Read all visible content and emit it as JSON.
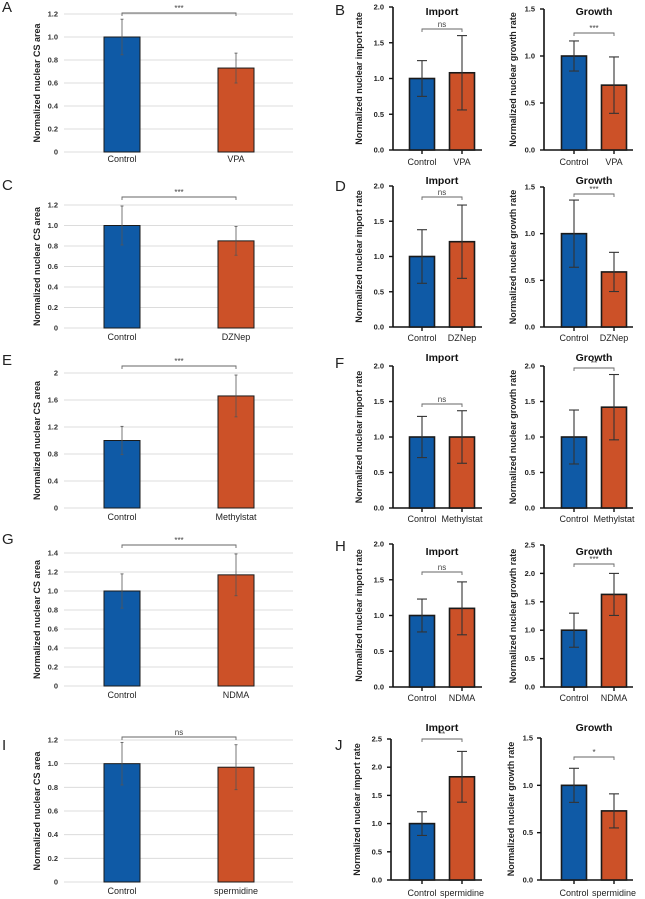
{
  "colors": {
    "control": "#0f5aa6",
    "treatment": "#cc5128",
    "grid": "#dcdcdc",
    "axis": "#111111"
  },
  "chart_data": [
    {
      "panel": "A",
      "type": "bar",
      "style": "excel",
      "title": "",
      "xlabel": "",
      "ylabel": "Normalized nuclear CS area",
      "categories": [
        "Control",
        "VPA"
      ],
      "values": [
        1.0,
        0.73
      ],
      "errors": [
        0.155,
        0.13
      ],
      "yticks": [
        "0",
        "0.2",
        "0.4",
        "0.6",
        "0.8",
        "1.0",
        "1.2"
      ],
      "ylim": [
        0,
        1.2
      ],
      "grid": true,
      "significance": "***"
    },
    {
      "panel": "B",
      "type": "bar",
      "style": "prism",
      "title": "Import",
      "xlabel": "",
      "ylabel": "Normalized nuclear import rate",
      "categories": [
        "Control",
        "VPA"
      ],
      "values": [
        1.0,
        1.08
      ],
      "errors": [
        0.25,
        0.52
      ],
      "yticks": [
        "0.0",
        "0.5",
        "1.0",
        "1.5",
        "2.0"
      ],
      "ylim": [
        0,
        2.0
      ],
      "grid": false,
      "significance": "ns"
    },
    {
      "panel": "B",
      "type": "bar",
      "style": "prism",
      "title": "Growth",
      "xlabel": "",
      "ylabel": "Normalized nuclear growth rate",
      "categories": [
        "Control",
        "VPA"
      ],
      "values": [
        1.0,
        0.69
      ],
      "errors": [
        0.16,
        0.3
      ],
      "yticks": [
        "0.0",
        "0.5",
        "1.0",
        "1.5"
      ],
      "ylim": [
        0,
        1.5
      ],
      "grid": false,
      "significance": "***"
    },
    {
      "panel": "C",
      "type": "bar",
      "style": "excel",
      "title": "",
      "xlabel": "",
      "ylabel": "Normalized nuclear CS area",
      "categories": [
        "Control",
        "DZNep"
      ],
      "values": [
        1.0,
        0.85
      ],
      "errors": [
        0.19,
        0.14
      ],
      "yticks": [
        "0",
        "0.2",
        "0.4",
        "0.6",
        "0.8",
        "1.0",
        "1.2"
      ],
      "ylim": [
        0,
        1.2
      ],
      "grid": true,
      "significance": "***"
    },
    {
      "panel": "D",
      "type": "bar",
      "style": "prism",
      "title": "Import",
      "xlabel": "",
      "ylabel": "Normalized nuclear import rate",
      "categories": [
        "Control",
        "DZNep"
      ],
      "values": [
        1.0,
        1.21
      ],
      "errors": [
        0.38,
        0.52
      ],
      "yticks": [
        "0.0",
        "0.5",
        "1.0",
        "1.5",
        "2.0"
      ],
      "ylim": [
        0,
        2.0
      ],
      "grid": false,
      "significance": "ns"
    },
    {
      "panel": "D",
      "type": "bar",
      "style": "prism",
      "title": "Growth",
      "xlabel": "",
      "ylabel": "Normalized nuclear growth rate",
      "categories": [
        "Control",
        "DZNep"
      ],
      "values": [
        1.0,
        0.59
      ],
      "errors": [
        0.36,
        0.21
      ],
      "yticks": [
        "0.0",
        "0.5",
        "1.0",
        "1.5"
      ],
      "ylim": [
        0,
        1.5
      ],
      "grid": false,
      "significance": "***"
    },
    {
      "panel": "E",
      "type": "bar",
      "style": "excel",
      "title": "",
      "xlabel": "",
      "ylabel": "Normalized nuclear CS area",
      "categories": [
        "Control",
        "Methylstat"
      ],
      "values": [
        1.0,
        1.66
      ],
      "errors": [
        0.21,
        0.31
      ],
      "yticks": [
        "0",
        "0.4",
        "0.8",
        "1.2",
        "1.6",
        "2"
      ],
      "ylim": [
        0,
        2.0
      ],
      "grid": true,
      "significance": "***"
    },
    {
      "panel": "F",
      "type": "bar",
      "style": "prism",
      "title": "Import",
      "xlabel": "",
      "ylabel": "Normalized nuclear import rate",
      "categories": [
        "Control",
        "Methylstat"
      ],
      "values": [
        1.0,
        1.0
      ],
      "errors": [
        0.29,
        0.37
      ],
      "yticks": [
        "0.0",
        "0.5",
        "1.0",
        "1.5",
        "2.0"
      ],
      "ylim": [
        0,
        2.0
      ],
      "grid": false,
      "significance": "ns"
    },
    {
      "panel": "F",
      "type": "bar",
      "style": "prism",
      "title": "Growth",
      "xlabel": "",
      "ylabel": "Normalized nuclear growth rate",
      "categories": [
        "Control",
        "Methylstat"
      ],
      "values": [
        1.0,
        1.42
      ],
      "errors": [
        0.38,
        0.46
      ],
      "yticks": [
        "0.0",
        "0.5",
        "1.0",
        "1.5",
        "2.0"
      ],
      "ylim": [
        0,
        2.0
      ],
      "grid": false,
      "significance": "**"
    },
    {
      "panel": "G",
      "type": "bar",
      "style": "excel",
      "title": "",
      "xlabel": "",
      "ylabel": "Normalized nuclear CS area",
      "categories": [
        "Control",
        "NDMA"
      ],
      "values": [
        1.0,
        1.17
      ],
      "errors": [
        0.18,
        0.22
      ],
      "yticks": [
        "0",
        "0.2",
        "0.4",
        "0.6",
        "0.8",
        "1.0",
        "1.2",
        "1.4"
      ],
      "ylim": [
        0,
        1.4
      ],
      "grid": true,
      "significance": "***"
    },
    {
      "panel": "H",
      "type": "bar",
      "style": "prism",
      "title": "Import",
      "xlabel": "",
      "ylabel": "Normalized nuclear import rate",
      "categories": [
        "Control",
        "NDMA"
      ],
      "values": [
        1.0,
        1.1
      ],
      "errors": [
        0.23,
        0.37
      ],
      "yticks": [
        "0.0",
        "0.5",
        "1.0",
        "1.5",
        "2.0"
      ],
      "ylim": [
        0,
        2.0
      ],
      "grid": false,
      "significance": "ns"
    },
    {
      "panel": "H",
      "type": "bar",
      "style": "prism",
      "title": "Growth",
      "xlabel": "",
      "ylabel": "Normalized nuclear growth rate",
      "categories": [
        "Control",
        "NDMA"
      ],
      "values": [
        1.0,
        1.63
      ],
      "errors": [
        0.3,
        0.37
      ],
      "yticks": [
        "0.0",
        "0.5",
        "1.0",
        "1.5",
        "2.0",
        "2.5"
      ],
      "ylim": [
        0,
        2.5
      ],
      "grid": false,
      "significance": "***"
    },
    {
      "panel": "I",
      "type": "bar",
      "style": "excel",
      "title": "",
      "xlabel": "",
      "ylabel": "Normalized nuclear CS area",
      "categories": [
        "Control",
        "spermidine"
      ],
      "values": [
        1.0,
        0.97
      ],
      "errors": [
        0.18,
        0.19
      ],
      "yticks": [
        "0",
        "0.2",
        "0.4",
        "0.6",
        "0.8",
        "1.0",
        "1.2"
      ],
      "ylim": [
        0,
        1.2
      ],
      "grid": true,
      "significance": "ns"
    },
    {
      "panel": "J",
      "type": "bar",
      "style": "prism",
      "title": "Import",
      "xlabel": "",
      "ylabel": "Normalized nuclear import rate",
      "categories": [
        "Control",
        "spermidine"
      ],
      "values": [
        1.0,
        1.83
      ],
      "errors": [
        0.21,
        0.45
      ],
      "yticks": [
        "0.0",
        "0.5",
        "1.0",
        "1.5",
        "2.0",
        "2.5"
      ],
      "ylim": [
        0,
        2.5
      ],
      "grid": false,
      "significance": "**"
    },
    {
      "panel": "J",
      "type": "bar",
      "style": "prism",
      "title": "Growth",
      "xlabel": "",
      "ylabel": "Normalized nuclear growth rate",
      "categories": [
        "Control",
        "spermidine"
      ],
      "values": [
        1.0,
        0.73
      ],
      "errors": [
        0.18,
        0.18
      ],
      "yticks": [
        "0.0",
        "0.5",
        "1.0",
        "1.5"
      ],
      "ylim": [
        0,
        1.5
      ],
      "grid": false,
      "significance": "*"
    }
  ]
}
